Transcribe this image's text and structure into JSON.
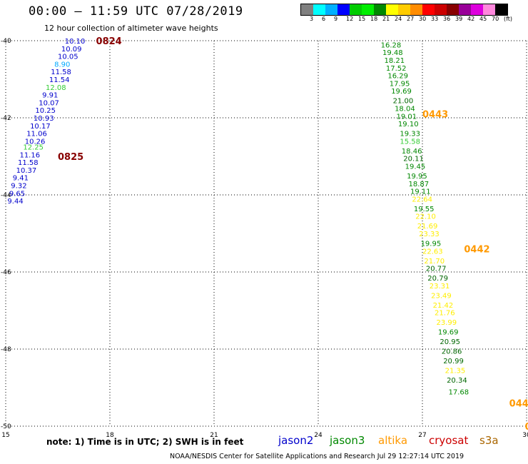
{
  "header": {
    "title": "00:00 – 11:59 UTC 07/28/2019",
    "subtitle": "12 hour collection of altimeter wave heights",
    "credit": "NOAA/NESDIS Center for Satellite Applications and Research    Jul 29 12:27:14 UTC 2019",
    "note": "note:  1) Time is in UTC;  2) SWH is in feet"
  },
  "colorbar": {
    "colors": [
      "#808080",
      "#00ffff",
      "#00b0ff",
      "#0000ff",
      "#00cc00",
      "#00ee00",
      "#008800",
      "#ffff00",
      "#ffcc00",
      "#ff8c00",
      "#ff0000",
      "#cc0000",
      "#880000",
      "#990099",
      "#dd00dd",
      "#ff88dd",
      "#000000"
    ],
    "labels": [
      "3",
      "6",
      "9",
      "12",
      "15",
      "18",
      "21",
      "24",
      "27",
      "30",
      "33",
      "36",
      "39",
      "42",
      "45",
      "70",
      "(ft)"
    ]
  },
  "satellites": [
    {
      "name": "jason2",
      "color": "#0000cc"
    },
    {
      "name": "jason3",
      "color": "#008800"
    },
    {
      "name": "altika",
      "color": "#ff9900"
    },
    {
      "name": "cryosat",
      "color": "#cc0000"
    },
    {
      "name": "s3a",
      "color": "#aa6600"
    }
  ],
  "map": {
    "lon_range": [
      15,
      30
    ],
    "lat_range": [
      -40,
      -50
    ],
    "x_ticks": [
      "15",
      "18",
      "21",
      "24",
      "27",
      "30"
    ],
    "y_ticks": [
      "-40",
      "-42",
      "-44",
      "-46",
      "-48",
      "-50"
    ]
  },
  "chart_data": {
    "type": "scatter",
    "title": "00:00 – 11:59 UTC 07/28/2019",
    "xlabel": "",
    "ylabel": "",
    "xlim": [
      15,
      30
    ],
    "ylim": [
      -50,
      -40
    ],
    "time_labels": [
      {
        "text": "0824",
        "lon": 17.6,
        "lat": -40.0,
        "color": "#880000"
      },
      {
        "text": "0825",
        "lon": 16.5,
        "lat": -43.0,
        "color": "#880000"
      },
      {
        "text": "0443",
        "lon": 27.0,
        "lat": -41.9,
        "color": "#ff9900"
      },
      {
        "text": "0442",
        "lon": 28.2,
        "lat": -45.4,
        "color": "#ff9900"
      },
      {
        "text": "044",
        "lon": 29.5,
        "lat": -49.4,
        "color": "#ff9900"
      },
      {
        "text": "0",
        "lon": 29.95,
        "lat": -50.0,
        "color": "#ff9900"
      }
    ],
    "tracks": [
      {
        "satellite": "cryosat",
        "points": [
          {
            "v": "10.10",
            "lon": 16.7,
            "lat": -40.0,
            "c": "#0000cc"
          },
          {
            "v": "10.09",
            "lon": 16.6,
            "lat": -40.2,
            "c": "#0000cc"
          },
          {
            "v": "10.05",
            "lon": 16.5,
            "lat": -40.4,
            "c": "#0000cc"
          },
          {
            "v": "8.90",
            "lon": 16.4,
            "lat": -40.6,
            "c": "#00aaff"
          },
          {
            "v": "11.58",
            "lon": 16.3,
            "lat": -40.8,
            "c": "#0000cc"
          },
          {
            "v": "11.54",
            "lon": 16.25,
            "lat": -41.0,
            "c": "#0000cc"
          },
          {
            "v": "12.08",
            "lon": 16.15,
            "lat": -41.2,
            "c": "#33cc33"
          },
          {
            "v": "9.91",
            "lon": 16.05,
            "lat": -41.4,
            "c": "#0000cc"
          },
          {
            "v": "10.07",
            "lon": 15.95,
            "lat": -41.6,
            "c": "#0000cc"
          },
          {
            "v": "10.25",
            "lon": 15.85,
            "lat": -41.8,
            "c": "#0000cc"
          },
          {
            "v": "10.93",
            "lon": 15.8,
            "lat": -42.0,
            "c": "#0000cc"
          },
          {
            "v": "10.17",
            "lon": 15.7,
            "lat": -42.2,
            "c": "#0000cc"
          },
          {
            "v": "11.06",
            "lon": 15.6,
            "lat": -42.4,
            "c": "#0000cc"
          },
          {
            "v": "10.26",
            "lon": 15.55,
            "lat": -42.6,
            "c": "#0000cc"
          },
          {
            "v": "12.25",
            "lon": 15.5,
            "lat": -42.75,
            "c": "#33cc33"
          },
          {
            "v": "11.16",
            "lon": 15.4,
            "lat": -42.95,
            "c": "#0000cc"
          },
          {
            "v": "11.58",
            "lon": 15.35,
            "lat": -43.15,
            "c": "#0000cc"
          },
          {
            "v": "10.37",
            "lon": 15.3,
            "lat": -43.35,
            "c": "#0000cc"
          },
          {
            "v": "9.41",
            "lon": 15.2,
            "lat": -43.55,
            "c": "#0000cc"
          },
          {
            "v": "9.32",
            "lon": 15.15,
            "lat": -43.75,
            "c": "#0000cc"
          },
          {
            "v": "9.65",
            "lon": 15.1,
            "lat": -43.95,
            "c": "#0000cc"
          },
          {
            "v": "9.44",
            "lon": 15.05,
            "lat": -44.15,
            "c": "#0000cc"
          }
        ]
      },
      {
        "satellite": "altika",
        "points": [
          {
            "v": "16.28",
            "lon": 25.8,
            "lat": -40.1,
            "c": "#008800"
          },
          {
            "v": "19.48",
            "lon": 25.85,
            "lat": -40.3,
            "c": "#008800"
          },
          {
            "v": "18.21",
            "lon": 25.9,
            "lat": -40.5,
            "c": "#008800"
          },
          {
            "v": "17.52",
            "lon": 25.95,
            "lat": -40.7,
            "c": "#008800"
          },
          {
            "v": "16.29",
            "lon": 26.0,
            "lat": -40.9,
            "c": "#008800"
          },
          {
            "v": "17.95",
            "lon": 26.05,
            "lat": -41.1,
            "c": "#008800"
          },
          {
            "v": "19.69",
            "lon": 26.1,
            "lat": -41.3,
            "c": "#008800"
          },
          {
            "v": "21.00",
            "lon": 26.15,
            "lat": -41.55,
            "c": "#006600"
          },
          {
            "v": "18.04",
            "lon": 26.2,
            "lat": -41.75,
            "c": "#008800"
          },
          {
            "v": "19.01",
            "lon": 26.25,
            "lat": -41.95,
            "c": "#008800"
          },
          {
            "v": "19.10",
            "lon": 26.3,
            "lat": -42.15,
            "c": "#008800"
          },
          {
            "v": "19.33",
            "lon": 26.35,
            "lat": -42.4,
            "c": "#008800"
          },
          {
            "v": "15.58",
            "lon": 26.35,
            "lat": -42.6,
            "c": "#33cc33"
          },
          {
            "v": "18.46",
            "lon": 26.4,
            "lat": -42.85,
            "c": "#008800"
          },
          {
            "v": "20.11",
            "lon": 26.45,
            "lat": -43.05,
            "c": "#006600"
          },
          {
            "v": "19.45",
            "lon": 26.5,
            "lat": -43.25,
            "c": "#008800"
          },
          {
            "v": "19.95",
            "lon": 26.55,
            "lat": -43.5,
            "c": "#008800"
          },
          {
            "v": "18.87",
            "lon": 26.6,
            "lat": -43.7,
            "c": "#008800"
          },
          {
            "v": "19.11",
            "lon": 26.65,
            "lat": -43.9,
            "c": "#008800"
          },
          {
            "v": "22.64",
            "lon": 26.7,
            "lat": -44.1,
            "c": "#ffee00"
          },
          {
            "v": "19.55",
            "lon": 26.75,
            "lat": -44.35,
            "c": "#008800"
          },
          {
            "v": "22.10",
            "lon": 26.8,
            "lat": -44.55,
            "c": "#ffee00"
          },
          {
            "v": "21.69",
            "lon": 26.85,
            "lat": -44.8,
            "c": "#ffee00"
          },
          {
            "v": "23.33",
            "lon": 26.9,
            "lat": -45.0,
            "c": "#ffee00"
          },
          {
            "v": "19.95",
            "lon": 26.95,
            "lat": -45.25,
            "c": "#008800"
          },
          {
            "v": "22.63",
            "lon": 27.0,
            "lat": -45.45,
            "c": "#ffee00"
          },
          {
            "v": "21.70",
            "lon": 27.05,
            "lat": -45.7,
            "c": "#ffee00"
          },
          {
            "v": "20.77",
            "lon": 27.1,
            "lat": -45.9,
            "c": "#006600"
          },
          {
            "v": "20.79",
            "lon": 27.15,
            "lat": -46.15,
            "c": "#006600"
          },
          {
            "v": "23.31",
            "lon": 27.2,
            "lat": -46.35,
            "c": "#ffee00"
          },
          {
            "v": "23.49",
            "lon": 27.25,
            "lat": -46.6,
            "c": "#ffee00"
          },
          {
            "v": "21.42",
            "lon": 27.3,
            "lat": -46.85,
            "c": "#ffee00"
          },
          {
            "v": "21.76",
            "lon": 27.35,
            "lat": -47.05,
            "c": "#ffee00"
          },
          {
            "v": "23.99",
            "lon": 27.4,
            "lat": -47.3,
            "c": "#ffee00"
          },
          {
            "v": "19.69",
            "lon": 27.45,
            "lat": -47.55,
            "c": "#008800"
          },
          {
            "v": "20.95",
            "lon": 27.5,
            "lat": -47.8,
            "c": "#006600"
          },
          {
            "v": "20.86",
            "lon": 27.55,
            "lat": -48.05,
            "c": "#006600"
          },
          {
            "v": "20.99",
            "lon": 27.6,
            "lat": -48.3,
            "c": "#006600"
          },
          {
            "v": "21.35",
            "lon": 27.65,
            "lat": -48.55,
            "c": "#ffee00"
          },
          {
            "v": "20.34",
            "lon": 27.7,
            "lat": -48.8,
            "c": "#006600"
          },
          {
            "v": "17.68",
            "lon": 27.75,
            "lat": -49.1,
            "c": "#008800"
          }
        ]
      }
    ]
  }
}
